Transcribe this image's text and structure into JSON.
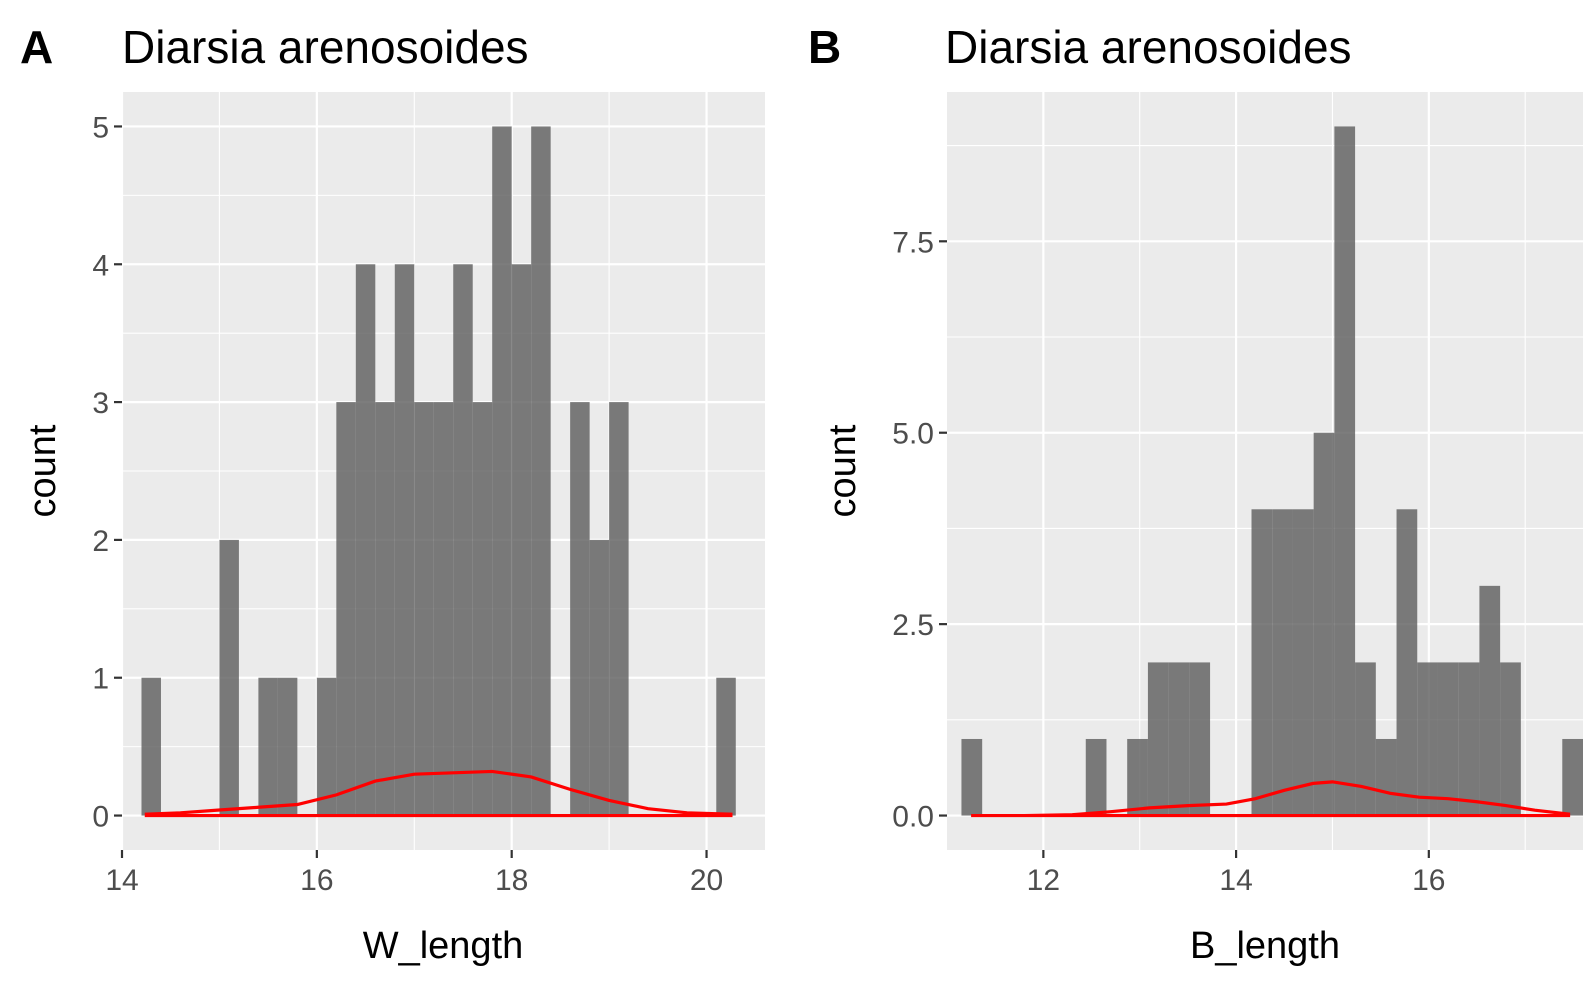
{
  "chart_data": [
    {
      "type": "bar",
      "tag": "A",
      "title": "Diarsia arenosoides",
      "xlabel": "W_length",
      "ylabel": "count",
      "xlim": [
        14.0,
        20.6
      ],
      "ylim": [
        -0.25,
        5.25
      ],
      "xticks": [
        14,
        16,
        18,
        20
      ],
      "xtick_labels": [
        "14",
        "16",
        "18",
        "20"
      ],
      "yticks": [
        0,
        1,
        2,
        3,
        4,
        5
      ],
      "ytick_labels": [
        "0",
        "1",
        "2",
        "3",
        "4",
        "5"
      ],
      "grid": true,
      "bin_width": 0.2,
      "bins": [
        {
          "x0": 14.2,
          "x1": 14.4,
          "count": 1
        },
        {
          "x0": 15.0,
          "x1": 15.2,
          "count": 2
        },
        {
          "x0": 15.4,
          "x1": 15.6,
          "count": 1
        },
        {
          "x0": 15.6,
          "x1": 15.8,
          "count": 1
        },
        {
          "x0": 16.0,
          "x1": 16.2,
          "count": 1
        },
        {
          "x0": 16.2,
          "x1": 16.4,
          "count": 3
        },
        {
          "x0": 16.4,
          "x1": 16.6,
          "count": 4
        },
        {
          "x0": 16.6,
          "x1": 16.8,
          "count": 3
        },
        {
          "x0": 16.8,
          "x1": 17.0,
          "count": 4
        },
        {
          "x0": 17.0,
          "x1": 17.2,
          "count": 3
        },
        {
          "x0": 17.2,
          "x1": 17.4,
          "count": 3
        },
        {
          "x0": 17.4,
          "x1": 17.6,
          "count": 4
        },
        {
          "x0": 17.6,
          "x1": 17.8,
          "count": 3
        },
        {
          "x0": 17.8,
          "x1": 18.0,
          "count": 5
        },
        {
          "x0": 18.0,
          "x1": 18.2,
          "count": 4
        },
        {
          "x0": 18.2,
          "x1": 18.4,
          "count": 5
        },
        {
          "x0": 18.6,
          "x1": 18.8,
          "count": 3
        },
        {
          "x0": 18.8,
          "x1": 19.0,
          "count": 2
        },
        {
          "x0": 19.0,
          "x1": 19.2,
          "count": 3
        },
        {
          "x0": 20.1,
          "x1": 20.3,
          "count": 1
        }
      ],
      "density": {
        "x": [
          14.25,
          14.6,
          15.0,
          15.4,
          15.8,
          16.2,
          16.6,
          17.0,
          17.4,
          17.8,
          18.2,
          18.6,
          19.0,
          19.4,
          19.8,
          20.25
        ],
        "y": [
          0.01,
          0.02,
          0.04,
          0.06,
          0.08,
          0.15,
          0.25,
          0.3,
          0.31,
          0.32,
          0.28,
          0.19,
          0.11,
          0.05,
          0.02,
          0.01
        ]
      },
      "colors": {
        "bar": "#595959",
        "density": "#ff0000"
      }
    },
    {
      "type": "bar",
      "tag": "B",
      "title": "Diarsia arenosoides",
      "xlabel": "B_length",
      "ylabel": "count",
      "xlim": [
        11.0,
        17.6
      ],
      "ylim": [
        -0.45,
        9.45
      ],
      "xticks": [
        12,
        14,
        16
      ],
      "xtick_labels": [
        "12",
        "14",
        "16"
      ],
      "yticks": [
        0,
        2.5,
        5,
        7.5
      ],
      "ytick_labels": [
        "0.0",
        "2.5",
        "5.0",
        "7.5"
      ],
      "grid": true,
      "bin_width": 0.215,
      "bins": [
        {
          "x0": 11.15,
          "x1": 11.365,
          "count": 1
        },
        {
          "x0": 12.44,
          "x1": 12.655,
          "count": 1
        },
        {
          "x0": 12.87,
          "x1": 13.085,
          "count": 1
        },
        {
          "x0": 13.085,
          "x1": 13.3,
          "count": 2
        },
        {
          "x0": 13.3,
          "x1": 13.515,
          "count": 2
        },
        {
          "x0": 13.515,
          "x1": 13.73,
          "count": 2
        },
        {
          "x0": 14.16,
          "x1": 14.375,
          "count": 4
        },
        {
          "x0": 14.375,
          "x1": 14.59,
          "count": 4
        },
        {
          "x0": 14.59,
          "x1": 14.805,
          "count": 4
        },
        {
          "x0": 14.805,
          "x1": 15.02,
          "count": 5
        },
        {
          "x0": 15.02,
          "x1": 15.235,
          "count": 9
        },
        {
          "x0": 15.235,
          "x1": 15.45,
          "count": 2
        },
        {
          "x0": 15.45,
          "x1": 15.665,
          "count": 1
        },
        {
          "x0": 15.665,
          "x1": 15.88,
          "count": 4
        },
        {
          "x0": 15.88,
          "x1": 16.095,
          "count": 2
        },
        {
          "x0": 16.095,
          "x1": 16.31,
          "count": 2
        },
        {
          "x0": 16.31,
          "x1": 16.525,
          "count": 2
        },
        {
          "x0": 16.525,
          "x1": 16.74,
          "count": 3
        },
        {
          "x0": 16.74,
          "x1": 16.955,
          "count": 2
        },
        {
          "x0": 17.385,
          "x1": 17.6,
          "count": 1
        }
      ],
      "density": {
        "x": [
          11.25,
          11.8,
          12.3,
          12.7,
          13.1,
          13.5,
          13.9,
          14.2,
          14.5,
          14.8,
          15.0,
          15.3,
          15.6,
          15.9,
          16.2,
          16.5,
          16.8,
          17.1,
          17.45
        ],
        "y": [
          0.0,
          0.0,
          0.01,
          0.05,
          0.1,
          0.13,
          0.15,
          0.22,
          0.33,
          0.42,
          0.44,
          0.38,
          0.29,
          0.24,
          0.22,
          0.18,
          0.13,
          0.07,
          0.02
        ]
      },
      "colors": {
        "bar": "#595959",
        "density": "#ff0000"
      }
    }
  ]
}
